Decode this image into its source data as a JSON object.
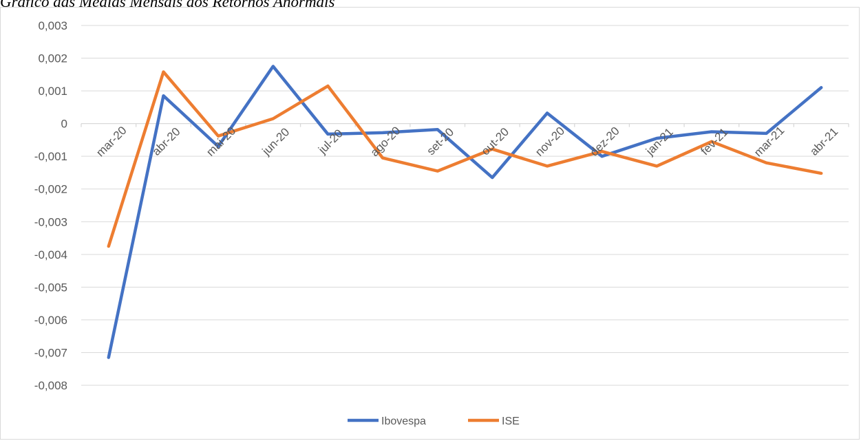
{
  "caption": "Gráfico das Médias Mensais dos Retornos Anormais",
  "chart_data": {
    "type": "line",
    "title": "",
    "xlabel": "",
    "ylabel": "",
    "categories": [
      "mar-20",
      "abr-20",
      "mai-20",
      "jun-20",
      "jul-20",
      "ago-20",
      "set-20",
      "out-20",
      "nov-20",
      "dez-20",
      "jan-21",
      "fev-21",
      "mar-21",
      "abr-21"
    ],
    "ylim": [
      -0.008,
      0.003
    ],
    "yticks": [
      0.003,
      0.002,
      0.001,
      0,
      -0.001,
      -0.002,
      -0.003,
      -0.004,
      -0.005,
      -0.006,
      -0.007,
      -0.008
    ],
    "ytick_labels": [
      "0,003",
      "0,002",
      "0,001",
      "0",
      "-0,001",
      "-0,002",
      "-0,003",
      "-0,004",
      "-0,005",
      "-0,006",
      "-0,007",
      "-0,008"
    ],
    "grid": true,
    "legend_position": "bottom",
    "series": [
      {
        "name": "Ibovespa",
        "color": "#4472c4",
        "values": [
          -0.00715,
          0.00085,
          -0.0007,
          0.00175,
          -0.00032,
          -0.00028,
          -0.00018,
          -0.00165,
          0.00032,
          -0.001,
          -0.00045,
          -0.00025,
          -0.0003,
          0.0011
        ]
      },
      {
        "name": "ISE",
        "color": "#ed7d31",
        "values": [
          -0.00375,
          0.00158,
          -0.00038,
          0.00015,
          0.00115,
          -0.00105,
          -0.00145,
          -0.00078,
          -0.0013,
          -0.00085,
          -0.0013,
          -0.00055,
          -0.0012,
          -0.00152
        ]
      }
    ]
  }
}
